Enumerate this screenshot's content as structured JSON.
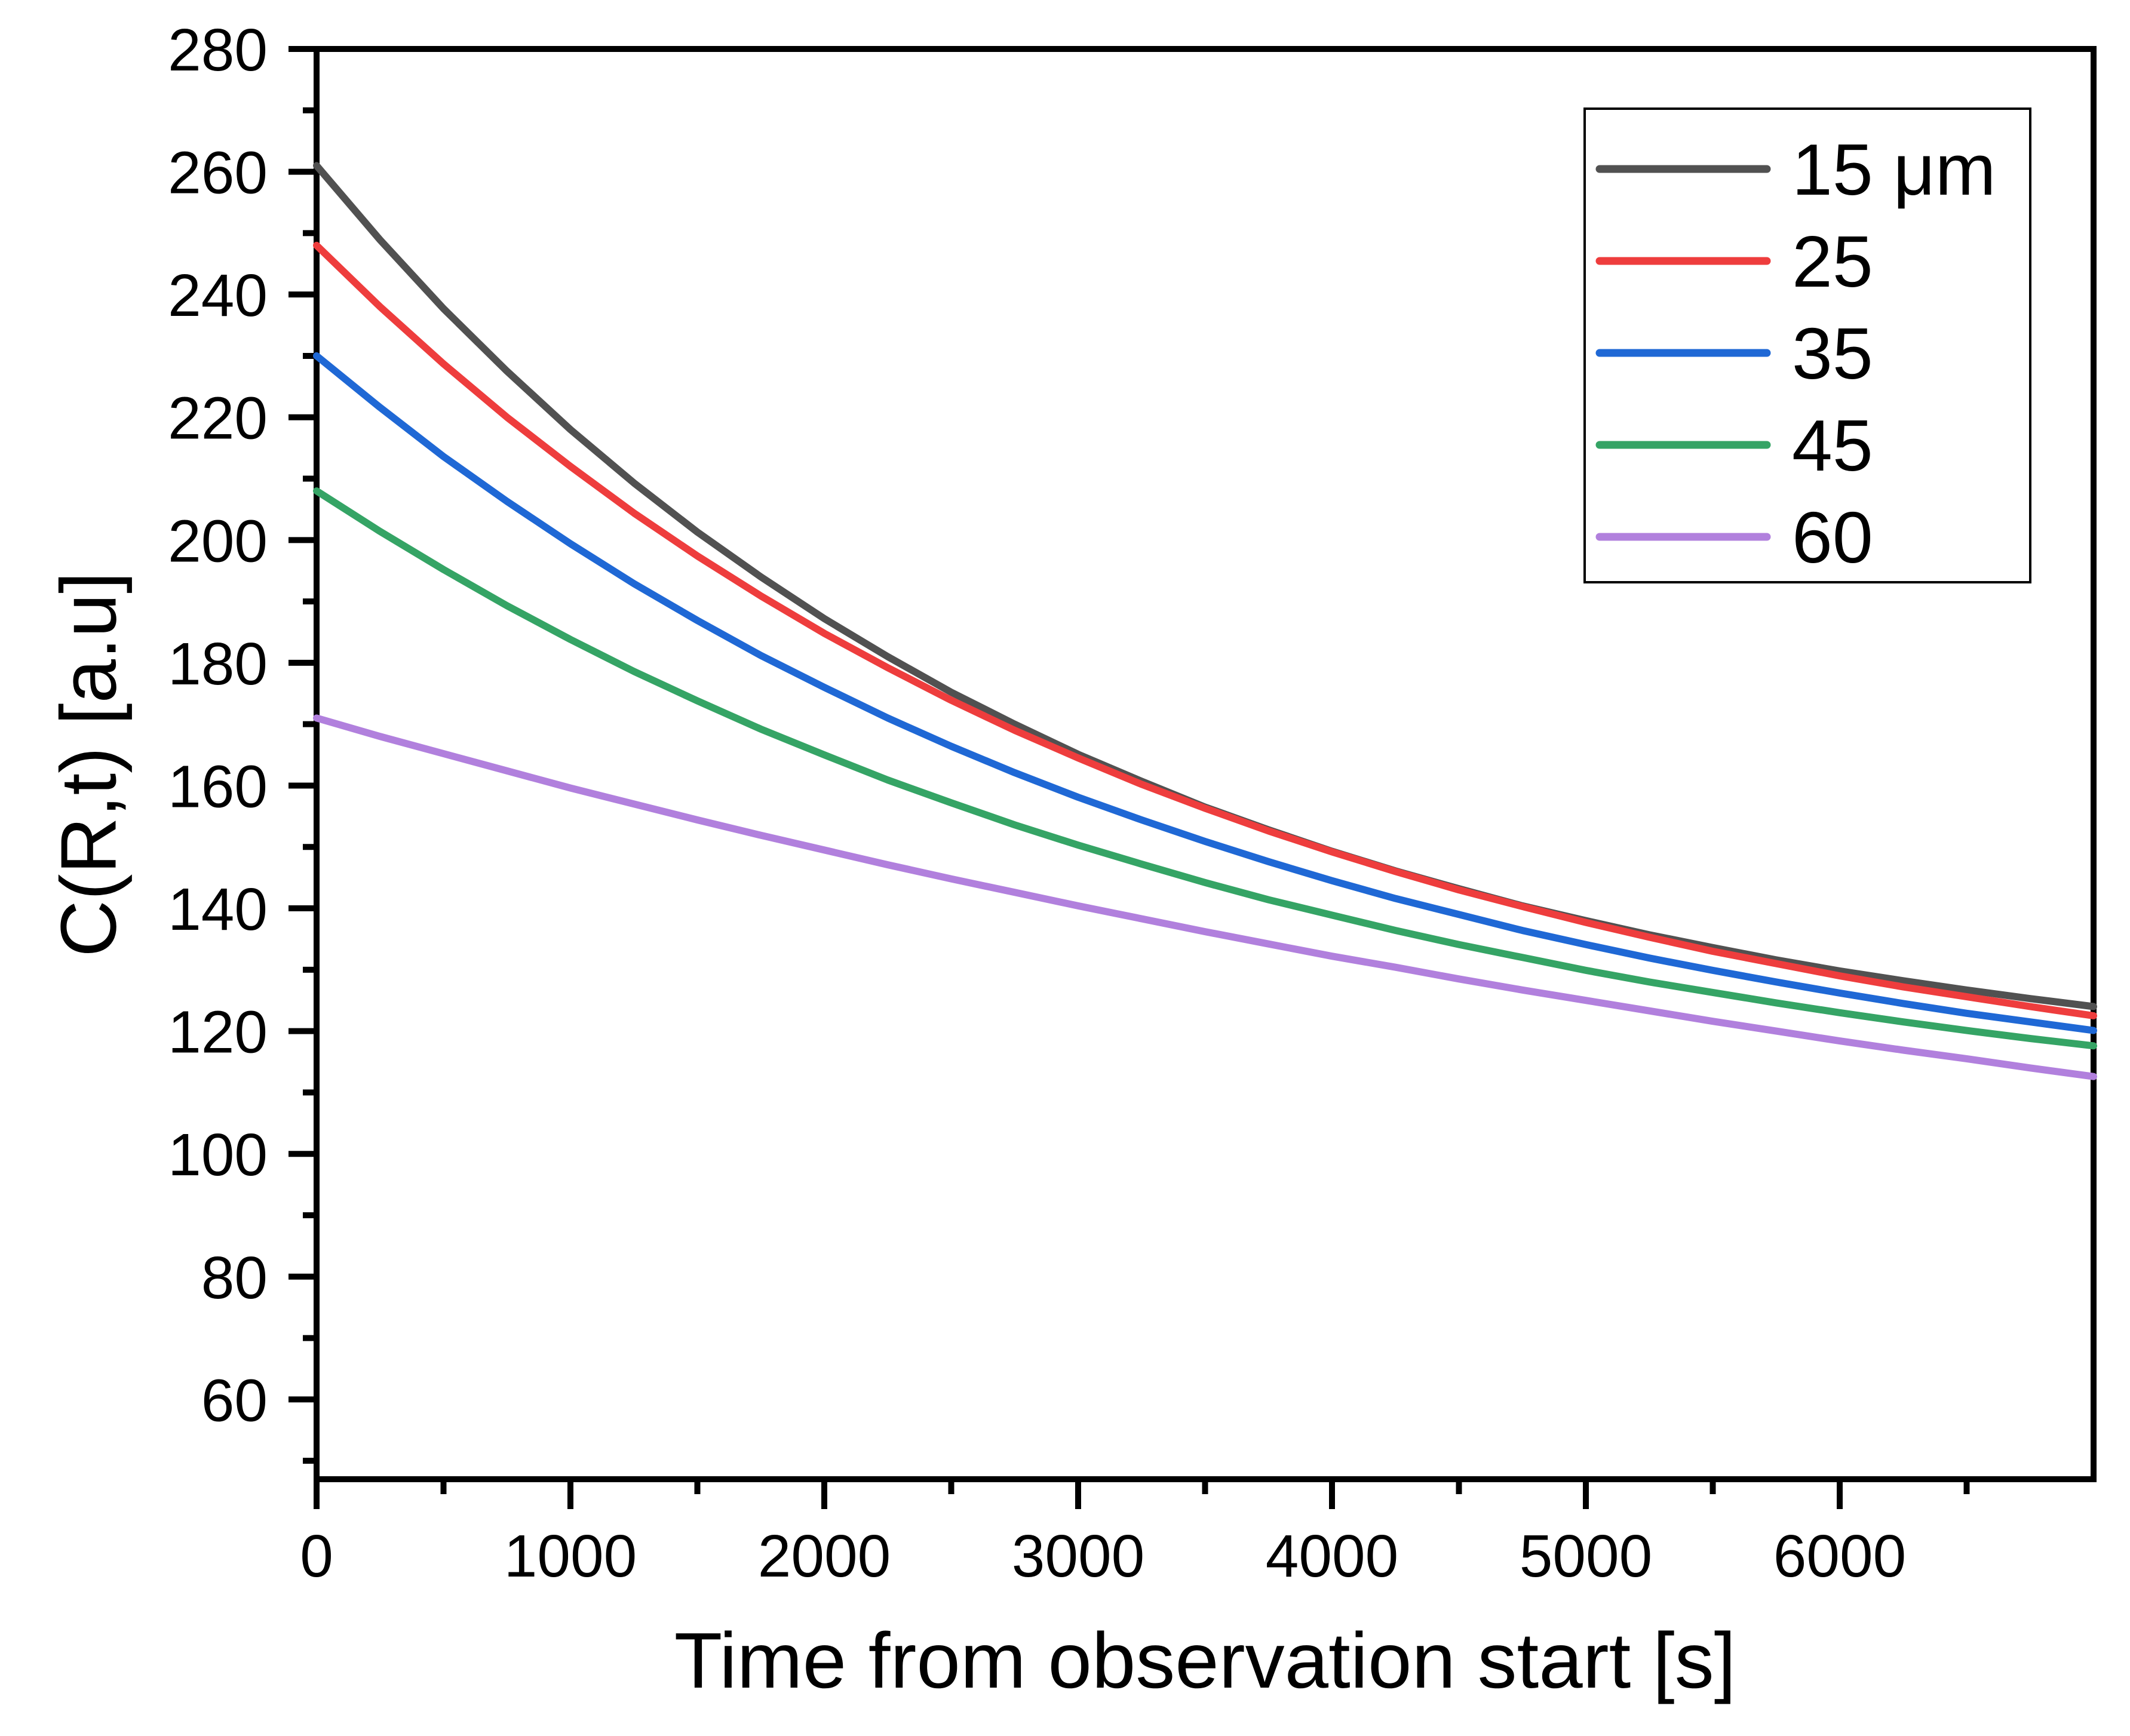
{
  "figure": {
    "background": "#ffffff",
    "axis_color": "#000000",
    "x_axis_title": "Time from observation start [s]",
    "y_axis_title": "C(R,t) [a.u]"
  },
  "chart_data": {
    "type": "line",
    "title": "",
    "xlabel": "Time from observation start [s]",
    "ylabel": "C(R,t) [a.u]",
    "xlim": [
      0,
      7000
    ],
    "ylim": [
      47,
      280
    ],
    "grid": false,
    "legend_position": "top-right",
    "x_major_ticks": [
      0,
      1000,
      2000,
      3000,
      4000,
      5000,
      6000
    ],
    "x_minor_ticks": [
      500,
      1500,
      2500,
      3500,
      4500,
      5500,
      6500
    ],
    "y_major_ticks": [
      60,
      80,
      100,
      120,
      140,
      160,
      180,
      200,
      220,
      240,
      260,
      280
    ],
    "y_minor_ticks": [
      50,
      70,
      90,
      110,
      130,
      150,
      170,
      190,
      210,
      230,
      250,
      270
    ],
    "x": [
      0,
      250,
      500,
      750,
      1000,
      1250,
      1500,
      1750,
      2000,
      2250,
      2500,
      2750,
      3000,
      3250,
      3500,
      3750,
      4000,
      4250,
      4500,
      4750,
      5000,
      5250,
      5500,
      5750,
      6000,
      6250,
      6500,
      6750,
      7000
    ],
    "series": [
      {
        "name": "15 μm",
        "color": "#515151",
        "values": [
          261.0,
          248.9,
          237.7,
          227.5,
          218.0,
          209.3,
          201.3,
          194.0,
          187.2,
          181.0,
          175.2,
          170.0,
          165.1,
          160.7,
          156.5,
          152.8,
          149.3,
          146.1,
          143.2,
          140.4,
          138.0,
          135.7,
          133.6,
          131.6,
          129.8,
          128.2,
          126.7,
          125.3,
          124.0
        ]
      },
      {
        "name": "25",
        "color": "#ee3d3d",
        "values": [
          248.0,
          238.0,
          228.7,
          220.0,
          212.0,
          204.4,
          197.4,
          190.9,
          184.8,
          179.2,
          173.9,
          169.0,
          164.5,
          160.2,
          156.3,
          152.6,
          149.2,
          146.0,
          143.0,
          140.3,
          137.7,
          135.3,
          133.0,
          131.0,
          129.0,
          127.2,
          125.6,
          124.0,
          122.5
        ]
      },
      {
        "name": "35",
        "color": "#1f68d5",
        "values": [
          230.0,
          221.6,
          213.6,
          206.3,
          199.4,
          192.9,
          186.9,
          181.2,
          176.0,
          171.0,
          166.4,
          162.1,
          158.1,
          154.4,
          150.9,
          147.6,
          144.5,
          141.6,
          139.0,
          136.4,
          134.1,
          131.9,
          129.9,
          128.0,
          126.2,
          124.5,
          122.9,
          121.5,
          120.1
        ]
      },
      {
        "name": "45",
        "color": "#35a465",
        "values": [
          208.0,
          201.4,
          195.2,
          189.3,
          183.8,
          178.6,
          173.8,
          169.2,
          165.0,
          160.9,
          157.2,
          153.6,
          150.3,
          147.2,
          144.2,
          141.4,
          138.9,
          136.4,
          134.1,
          132.0,
          129.9,
          128.0,
          126.3,
          124.6,
          123.0,
          121.5,
          120.1,
          118.8,
          117.6
        ]
      },
      {
        "name": "60",
        "color": "#b180dd",
        "values": [
          171.0,
          168.0,
          165.2,
          162.4,
          159.6,
          157.0,
          154.4,
          151.9,
          149.5,
          147.1,
          144.8,
          142.6,
          140.4,
          138.3,
          136.2,
          134.2,
          132.2,
          130.4,
          128.5,
          126.7,
          125.0,
          123.3,
          121.6,
          120.0,
          118.4,
          116.9,
          115.5,
          114.0,
          112.6
        ]
      }
    ]
  }
}
